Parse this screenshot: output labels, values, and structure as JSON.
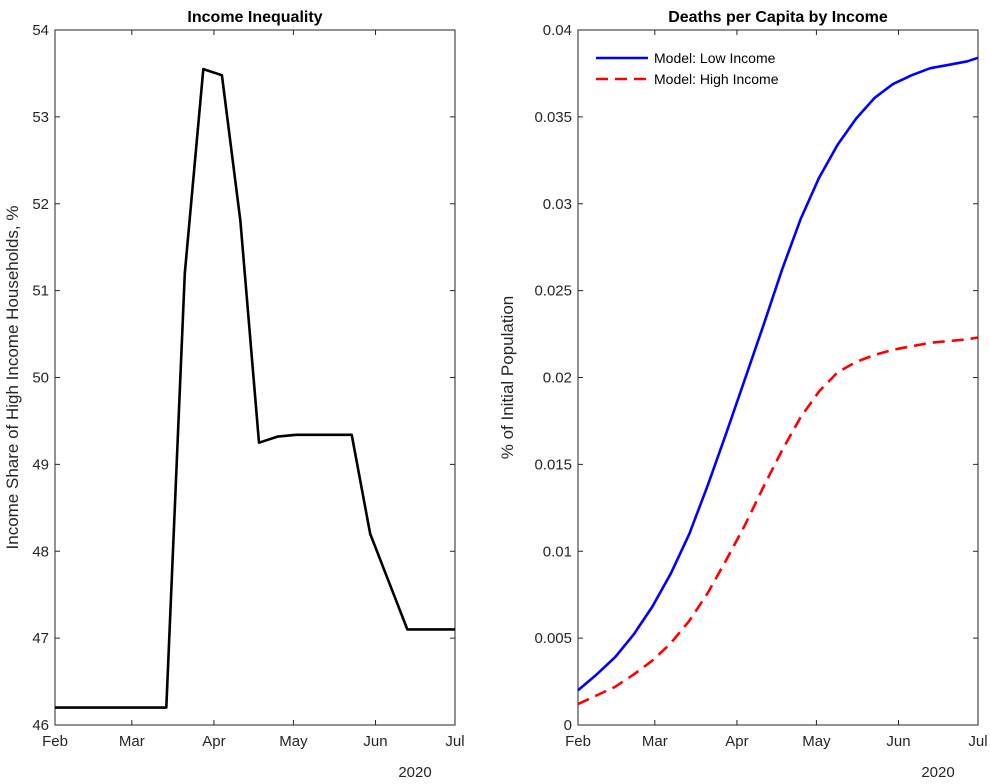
{
  "chart_data": [
    {
      "type": "line",
      "title": "Income Inequality",
      "xlabel": "",
      "ylabel": "Income Share of High Income Households, %",
      "x_year_label": "2020",
      "x_ticks": [
        "Feb",
        "Mar",
        "Apr",
        "May",
        "Jun",
        "Jul"
      ],
      "x_tick_dates": [
        "2020-02-01",
        "2020-03-01",
        "2020-04-01",
        "2020-05-01",
        "2020-06-01",
        "2020-07-01"
      ],
      "xlim": [
        "2020-02-01",
        "2020-07-01"
      ],
      "ylim": [
        46,
        54
      ],
      "y_ticks": [
        46,
        47,
        48,
        49,
        50,
        51,
        52,
        53,
        54
      ],
      "y_tick_labels": [
        "46",
        "47",
        "48",
        "49",
        "50",
        "51",
        "52",
        "53",
        "54"
      ],
      "grid": false,
      "series": [
        {
          "color": "#000000",
          "style": "solid",
          "x": [
            "2020-02-01",
            "2020-02-08",
            "2020-02-15",
            "2020-02-22",
            "2020-02-29",
            "2020-03-07",
            "2020-03-14",
            "2020-03-21",
            "2020-03-28",
            "2020-04-04",
            "2020-04-11",
            "2020-04-18",
            "2020-04-25",
            "2020-05-02",
            "2020-05-09",
            "2020-05-16",
            "2020-05-23",
            "2020-05-30",
            "2020-06-06",
            "2020-06-13",
            "2020-06-20",
            "2020-06-27",
            "2020-07-01"
          ],
          "values": [
            46.2,
            46.2,
            46.2,
            46.2,
            46.2,
            46.2,
            46.2,
            51.2,
            53.55,
            53.48,
            51.8,
            49.25,
            49.32,
            49.34,
            49.34,
            49.34,
            49.34,
            48.2,
            47.65,
            47.1,
            47.1,
            47.1,
            47.1
          ]
        }
      ]
    },
    {
      "type": "line",
      "title": "Deaths per Capita by Income",
      "xlabel": "",
      "ylabel": "% of Initial Population",
      "x_year_label": "2020",
      "x_ticks": [
        "Feb",
        "Mar",
        "Apr",
        "May",
        "Jun",
        "Jul"
      ],
      "x_tick_dates": [
        "2020-02-01",
        "2020-03-01",
        "2020-04-01",
        "2020-05-01",
        "2020-06-01",
        "2020-07-01"
      ],
      "xlim": [
        "2020-02-01",
        "2020-07-01"
      ],
      "ylim": [
        0,
        0.04
      ],
      "y_ticks": [
        0,
        0.005,
        0.01,
        0.015,
        0.02,
        0.025,
        0.03,
        0.035,
        0.04
      ],
      "y_tick_labels": [
        "0",
        "0.005",
        "0.01",
        "0.015",
        "0.02",
        "0.025",
        "0.03",
        "0.035",
        "0.04"
      ],
      "grid": false,
      "legend_position": "top-left",
      "series": [
        {
          "name": "Model: Low Income",
          "color": "#0000ff",
          "style": "solid",
          "x": [
            "2020-02-01",
            "2020-02-08",
            "2020-02-15",
            "2020-02-22",
            "2020-02-29",
            "2020-03-07",
            "2020-03-14",
            "2020-03-21",
            "2020-03-28",
            "2020-04-04",
            "2020-04-11",
            "2020-04-18",
            "2020-04-25",
            "2020-05-02",
            "2020-05-09",
            "2020-05-16",
            "2020-05-23",
            "2020-05-30",
            "2020-06-06",
            "2020-06-13",
            "2020-06-20",
            "2020-06-27",
            "2020-07-01"
          ],
          "values": [
            0.002,
            0.0029,
            0.0039,
            0.0052,
            0.0068,
            0.0087,
            0.011,
            0.0138,
            0.0168,
            0.0199,
            0.023,
            0.0262,
            0.0291,
            0.0315,
            0.0334,
            0.0349,
            0.0361,
            0.0369,
            0.0374,
            0.0378,
            0.038,
            0.0382,
            0.0384
          ]
        },
        {
          "name": "Model: High Income",
          "color": "#ff0000",
          "style": "dashed",
          "x": [
            "2020-02-01",
            "2020-02-08",
            "2020-02-15",
            "2020-02-22",
            "2020-02-29",
            "2020-03-07",
            "2020-03-14",
            "2020-03-21",
            "2020-03-28",
            "2020-04-04",
            "2020-04-11",
            "2020-04-18",
            "2020-04-25",
            "2020-05-02",
            "2020-05-09",
            "2020-05-16",
            "2020-05-23",
            "2020-05-30",
            "2020-06-06",
            "2020-06-13",
            "2020-06-20",
            "2020-06-27",
            "2020-07-01"
          ],
          "values": [
            0.0012,
            0.0017,
            0.0022,
            0.0029,
            0.0037,
            0.0047,
            0.006,
            0.0076,
            0.0095,
            0.0115,
            0.0137,
            0.0158,
            0.0177,
            0.0192,
            0.0203,
            0.0209,
            0.0213,
            0.0216,
            0.0218,
            0.022,
            0.0221,
            0.0222,
            0.0223
          ]
        }
      ]
    }
  ]
}
